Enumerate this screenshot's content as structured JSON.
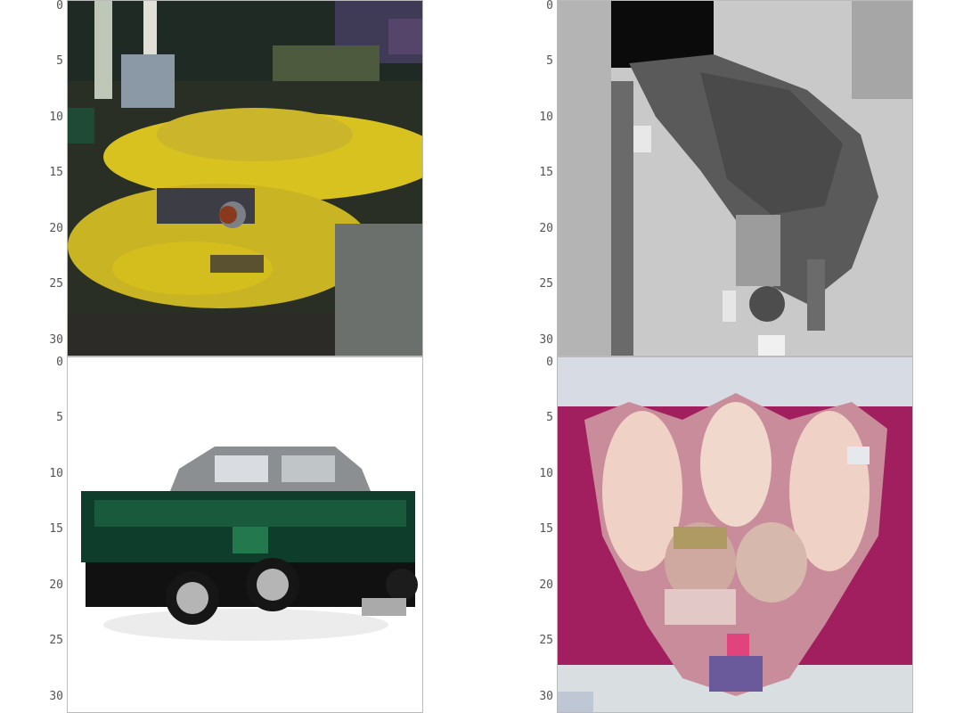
{
  "y_ticks": [
    "0",
    "5",
    "10",
    "15",
    "20",
    "25",
    "30"
  ],
  "panels": [
    {
      "subject": "yellow-car",
      "colors": {
        "primary": "#d8c21f",
        "bg": "#2a2f26"
      }
    },
    {
      "subject": "grayscale-animal",
      "colors": {
        "primary": "#3a3a3a",
        "bg": "#c9c9c9"
      }
    },
    {
      "subject": "green-car",
      "colors": {
        "primary": "#0f3d2b",
        "bg": "#ffffff"
      }
    },
    {
      "subject": "cat-face",
      "colors": {
        "primary": "#d9b3a2",
        "bg": "#a11f5e"
      }
    }
  ]
}
